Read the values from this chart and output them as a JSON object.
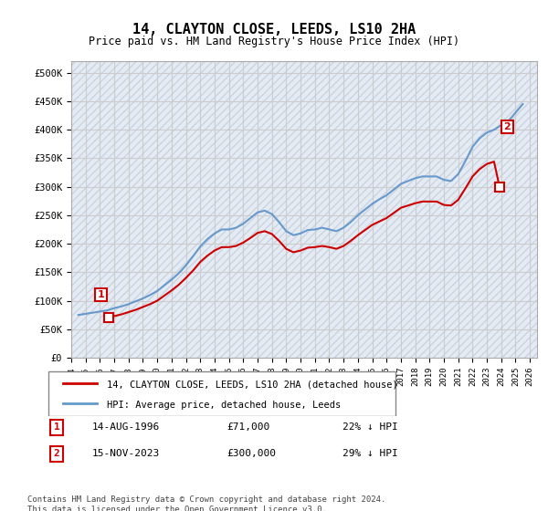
{
  "title": "14, CLAYTON CLOSE, LEEDS, LS10 2HA",
  "subtitle": "Price paid vs. HM Land Registry's House Price Index (HPI)",
  "ylabel_ticks": [
    "£0",
    "£50K",
    "£100K",
    "£150K",
    "£200K",
    "£250K",
    "£300K",
    "£350K",
    "£400K",
    "£450K",
    "£500K"
  ],
  "ytick_values": [
    0,
    50000,
    100000,
    150000,
    200000,
    250000,
    300000,
    350000,
    400000,
    450000,
    500000
  ],
  "ylim": [
    0,
    520000
  ],
  "xlim_start": 1994.0,
  "xlim_end": 2026.5,
  "hpi_color": "#6699cc",
  "price_color": "#cc0000",
  "bg_color": "#f0f4f8",
  "grid_color": "#cccccc",
  "hatch_color": "#d0d8e8",
  "purchase1_x": 1996.62,
  "purchase1_y": 71000,
  "purchase2_x": 2023.88,
  "purchase2_y": 300000,
  "label_house": "14, CLAYTON CLOSE, LEEDS, LS10 2HA (detached house)",
  "label_hpi": "HPI: Average price, detached house, Leeds",
  "footnote": "Contains HM Land Registry data © Crown copyright and database right 2024.\nThis data is licensed under the Open Government Licence v3.0.",
  "table_row1": "1    14-AUG-1996              £71,000              22% ↓ HPI",
  "table_row2": "2    15-NOV-2023              £300,000            29% ↓ HPI",
  "hpi_data_x": [
    1994.5,
    1995.0,
    1995.5,
    1996.0,
    1996.5,
    1997.0,
    1997.5,
    1998.0,
    1998.5,
    1999.0,
    1999.5,
    2000.0,
    2000.5,
    2001.0,
    2001.5,
    2002.0,
    2002.5,
    2003.0,
    2003.5,
    2004.0,
    2004.5,
    2005.0,
    2005.5,
    2006.0,
    2006.5,
    2007.0,
    2007.5,
    2008.0,
    2008.5,
    2009.0,
    2009.5,
    2010.0,
    2010.5,
    2011.0,
    2011.5,
    2012.0,
    2012.5,
    2013.0,
    2013.5,
    2014.0,
    2014.5,
    2015.0,
    2015.5,
    2016.0,
    2016.5,
    2017.0,
    2017.5,
    2018.0,
    2018.5,
    2019.0,
    2019.5,
    2020.0,
    2020.5,
    2021.0,
    2021.5,
    2022.0,
    2022.5,
    2023.0,
    2023.5,
    2024.0,
    2024.5,
    2025.0,
    2025.5
  ],
  "hpi_data_y": [
    75000,
    77000,
    79000,
    81000,
    83000,
    87000,
    90000,
    94000,
    99000,
    104000,
    110000,
    117000,
    127000,
    137000,
    148000,
    162000,
    178000,
    195000,
    208000,
    218000,
    225000,
    225000,
    228000,
    235000,
    245000,
    255000,
    258000,
    252000,
    238000,
    222000,
    215000,
    218000,
    224000,
    225000,
    228000,
    225000,
    222000,
    228000,
    238000,
    250000,
    260000,
    270000,
    278000,
    285000,
    295000,
    305000,
    310000,
    315000,
    318000,
    318000,
    318000,
    312000,
    310000,
    322000,
    345000,
    370000,
    385000,
    395000,
    400000,
    408000,
    415000,
    430000,
    445000
  ],
  "price_line_x": [
    1996.62,
    1996.7,
    1997.0,
    1997.5,
    1998.0,
    1998.5,
    1999.0,
    1999.5,
    2000.0,
    2000.5,
    2001.0,
    2001.5,
    2002.0,
    2002.5,
    2003.0,
    2003.5,
    2004.0,
    2004.5,
    2005.0,
    2005.5,
    2006.0,
    2006.5,
    2007.0,
    2007.5,
    2008.0,
    2008.5,
    2009.0,
    2009.5,
    2010.0,
    2010.5,
    2011.0,
    2011.5,
    2012.0,
    2012.5,
    2013.0,
    2013.5,
    2014.0,
    2014.5,
    2015.0,
    2015.5,
    2016.0,
    2016.5,
    2017.0,
    2017.5,
    2018.0,
    2018.5,
    2019.0,
    2019.5,
    2020.0,
    2020.5,
    2021.0,
    2021.5,
    2022.0,
    2022.5,
    2023.0,
    2023.5,
    2023.88
  ],
  "price_line_y": [
    71000,
    71500,
    73000,
    76000,
    80000,
    84000,
    89000,
    94000,
    100000,
    109000,
    118000,
    128000,
    140000,
    153000,
    168000,
    179000,
    188000,
    194000,
    194000,
    196000,
    202000,
    210000,
    219000,
    222000,
    217000,
    205000,
    191000,
    185000,
    188000,
    193000,
    194000,
    196000,
    194000,
    191000,
    196000,
    205000,
    215000,
    224000,
    233000,
    239000,
    245000,
    254000,
    263000,
    267000,
    271000,
    274000,
    274000,
    274000,
    268000,
    267000,
    277000,
    297000,
    318000,
    331000,
    340000,
    344000,
    300000
  ]
}
